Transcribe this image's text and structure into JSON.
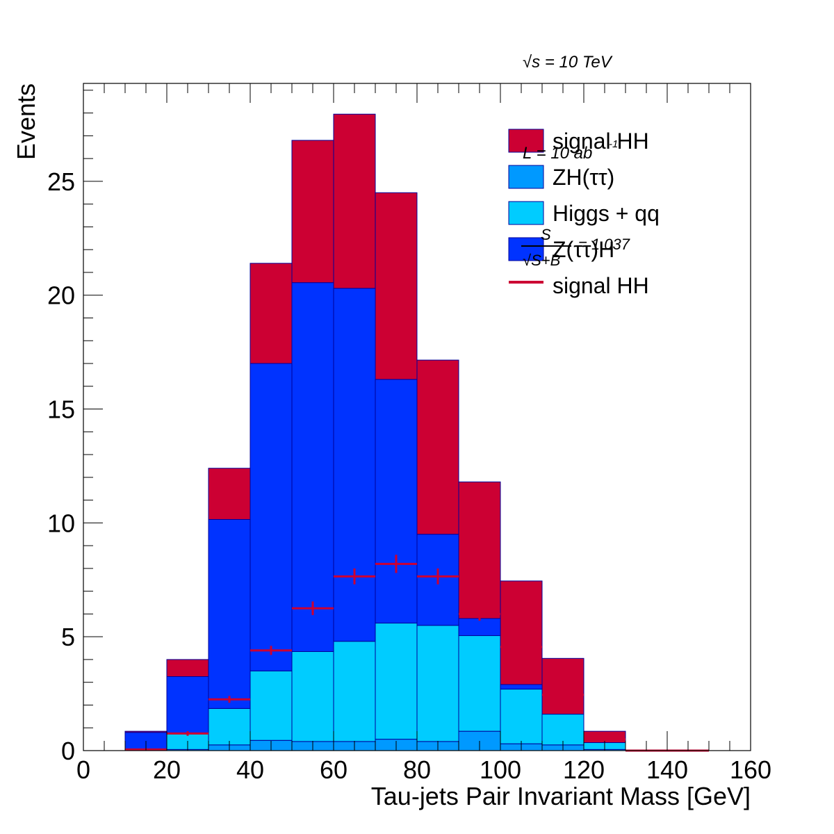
{
  "chart_data": {
    "type": "bar",
    "stacked": true,
    "title": "",
    "annotation_energy": "√s = 10 TeV",
    "annotation_lumi": "L = 10 ab",
    "annotation_lumi_exp": "-1",
    "annotation_signif_num": "S",
    "annotation_signif_den": "√S+B",
    "annotation_signif_value": "= 1.037",
    "xlabel": "Tau-jets Pair Invariant Mass [GeV]",
    "ylabel": "Events",
    "xlim": [
      0,
      160
    ],
    "ylim": [
      0,
      29.3
    ],
    "x_ticks": [
      0,
      20,
      40,
      60,
      80,
      100,
      120,
      140,
      160
    ],
    "y_ticks": [
      0,
      5,
      10,
      15,
      20,
      25
    ],
    "bin_edges": [
      0,
      10,
      20,
      30,
      40,
      50,
      60,
      70,
      80,
      90,
      100,
      110,
      120,
      130,
      140,
      150,
      160
    ],
    "series": [
      {
        "name": "ZH(ττ)",
        "color": "#0099ff",
        "values": [
          0,
          0.05,
          0.05,
          0.25,
          0.45,
          0.4,
          0.4,
          0.5,
          0.4,
          0.85,
          0.3,
          0.25,
          0.05,
          0,
          0,
          0
        ]
      },
      {
        "name": "Higgs + qq",
        "color": "#00ccff",
        "values": [
          0,
          0,
          0.7,
          1.6,
          3.05,
          3.95,
          4.4,
          5.1,
          5.1,
          4.2,
          2.4,
          1.35,
          0.3,
          0,
          0,
          0
        ]
      },
      {
        "name": "Z(ττ)H",
        "color": "#0033ff",
        "values": [
          0,
          0.75,
          2.5,
          8.3,
          13.5,
          16.2,
          15.5,
          10.7,
          4.0,
          0.75,
          0.2,
          0,
          0,
          0,
          0,
          0
        ]
      },
      {
        "name": "signal HH",
        "color": "#cc0033",
        "values": [
          0,
          0.05,
          0.75,
          2.25,
          4.4,
          6.25,
          7.65,
          8.2,
          7.65,
          6.0,
          4.55,
          2.45,
          0.5,
          0,
          0,
          0
        ]
      }
    ],
    "signal_overlay": {
      "name": "signal HH",
      "color": "#cc0033",
      "values": [
        0,
        0.05,
        0.75,
        2.25,
        4.4,
        6.25,
        7.65,
        8.2,
        7.65,
        6.0,
        4.55,
        2.45,
        0.5,
        0,
        0,
        0
      ],
      "errors": [
        0,
        0.05,
        0.1,
        0.15,
        0.2,
        0.3,
        0.35,
        0.4,
        0.35,
        0.3,
        0.25,
        0.15,
        0.05,
        0,
        0,
        0
      ]
    },
    "legend": {
      "placement": "top-right",
      "entries": [
        {
          "label": "signal HH",
          "style": "fill",
          "color": "#cc0033"
        },
        {
          "label": "ZH(ττ)",
          "style": "fill",
          "color": "#0099ff"
        },
        {
          "label": "Higgs + qq",
          "style": "fill",
          "color": "#00ccff"
        },
        {
          "label": "Z(ττ)H",
          "style": "fill",
          "color": "#0033ff"
        },
        {
          "label": "signal HH",
          "style": "line",
          "color": "#cc0033"
        }
      ]
    }
  }
}
